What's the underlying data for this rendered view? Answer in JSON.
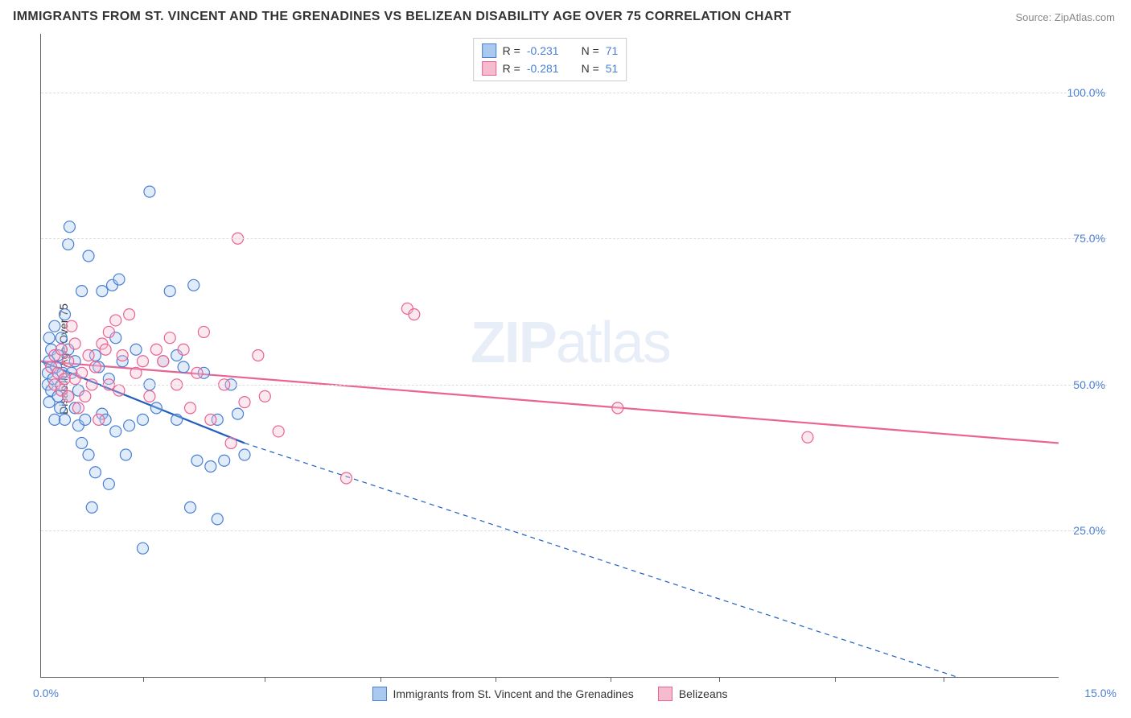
{
  "title": "IMMIGRANTS FROM ST. VINCENT AND THE GRENADINES VS BELIZEAN DISABILITY AGE OVER 75 CORRELATION CHART",
  "source": "Source: ZipAtlas.com",
  "watermark": {
    "zip": "ZIP",
    "atlas": "atlas"
  },
  "chart": {
    "type": "scatter",
    "ylabel": "Disability Age Over 75",
    "xlim": [
      0.0,
      15.0
    ],
    "ylim": [
      0.0,
      110.0
    ],
    "xlim_labels": {
      "left": "0.0%",
      "right": "15.0%"
    },
    "xtick_positions": [
      1.5,
      3.3,
      5.0,
      6.7,
      8.4,
      10.0,
      11.7,
      13.3
    ],
    "ytick_labels": [
      "25.0%",
      "50.0%",
      "75.0%",
      "100.0%"
    ],
    "ytick_positions": [
      25.0,
      50.0,
      75.0,
      100.0
    ],
    "grid_color": "#dddddd",
    "axis_color": "#666666",
    "tick_label_color": "#4a7fd4",
    "background_color": "#ffffff",
    "marker_radius": 7,
    "marker_stroke_width": 1.2,
    "marker_fill_opacity": 0.35,
    "series": [
      {
        "name": "Immigrants from St. Vincent and the Grenadines",
        "color_fill": "#a9c9f0",
        "color_stroke": "#4a7fd4",
        "R": "-0.231",
        "N": "71",
        "trend": {
          "x1": 0.0,
          "y1": 54.0,
          "x2": 3.0,
          "y2": 40.0,
          "solid_end_x": 3.0,
          "dash_to_x": 13.5,
          "dash_to_y": 0.0,
          "color": "#1f5fbf",
          "width": 2.2
        },
        "points": [
          [
            0.1,
            50
          ],
          [
            0.1,
            52
          ],
          [
            0.12,
            54
          ],
          [
            0.12,
            47
          ],
          [
            0.15,
            56
          ],
          [
            0.15,
            49
          ],
          [
            0.18,
            51
          ],
          [
            0.2,
            60
          ],
          [
            0.2,
            44
          ],
          [
            0.22,
            53
          ],
          [
            0.25,
            48
          ],
          [
            0.25,
            55
          ],
          [
            0.28,
            46
          ],
          [
            0.3,
            58
          ],
          [
            0.3,
            50
          ],
          [
            0.32,
            52
          ],
          [
            0.35,
            62
          ],
          [
            0.35,
            44
          ],
          [
            0.4,
            56
          ],
          [
            0.4,
            48
          ],
          [
            0.42,
            77
          ],
          [
            0.45,
            52
          ],
          [
            0.5,
            46
          ],
          [
            0.5,
            54
          ],
          [
            0.55,
            43
          ],
          [
            0.55,
            49
          ],
          [
            0.6,
            66
          ],
          [
            0.6,
            40
          ],
          [
            0.65,
            44
          ],
          [
            0.7,
            72
          ],
          [
            0.7,
            38
          ],
          [
            0.75,
            29
          ],
          [
            0.8,
            35
          ],
          [
            0.8,
            55
          ],
          [
            0.85,
            53
          ],
          [
            0.9,
            66
          ],
          [
            0.9,
            45
          ],
          [
            0.95,
            44
          ],
          [
            1.0,
            51
          ],
          [
            1.0,
            33
          ],
          [
            1.05,
            67
          ],
          [
            1.1,
            58
          ],
          [
            1.1,
            42
          ],
          [
            1.15,
            68
          ],
          [
            1.2,
            54
          ],
          [
            1.25,
            38
          ],
          [
            1.3,
            43
          ],
          [
            1.4,
            56
          ],
          [
            1.5,
            44
          ],
          [
            1.5,
            22
          ],
          [
            1.6,
            83
          ],
          [
            1.6,
            50
          ],
          [
            1.7,
            46
          ],
          [
            1.8,
            54
          ],
          [
            1.9,
            66
          ],
          [
            2.0,
            44
          ],
          [
            2.0,
            55
          ],
          [
            2.1,
            53
          ],
          [
            2.2,
            29
          ],
          [
            2.25,
            67
          ],
          [
            2.3,
            37
          ],
          [
            2.4,
            52
          ],
          [
            2.5,
            36
          ],
          [
            2.6,
            44
          ],
          [
            2.6,
            27
          ],
          [
            2.7,
            37
          ],
          [
            2.8,
            50
          ],
          [
            2.9,
            45
          ],
          [
            3.0,
            38
          ],
          [
            0.4,
            74
          ],
          [
            0.12,
            58
          ]
        ]
      },
      {
        "name": "Belizeans",
        "color_fill": "#f5bcd0",
        "color_stroke": "#e96394",
        "R": "-0.281",
        "N": "51",
        "trend": {
          "x1": 0.0,
          "y1": 54.0,
          "x2": 15.0,
          "y2": 40.0,
          "solid_end_x": 15.0,
          "color": "#e96394",
          "width": 2.2
        },
        "points": [
          [
            0.15,
            53
          ],
          [
            0.2,
            50
          ],
          [
            0.2,
            55
          ],
          [
            0.25,
            52
          ],
          [
            0.3,
            49
          ],
          [
            0.3,
            56
          ],
          [
            0.35,
            51
          ],
          [
            0.4,
            54
          ],
          [
            0.4,
            48
          ],
          [
            0.45,
            60
          ],
          [
            0.5,
            51
          ],
          [
            0.5,
            57
          ],
          [
            0.55,
            46
          ],
          [
            0.6,
            52
          ],
          [
            0.65,
            48
          ],
          [
            0.7,
            55
          ],
          [
            0.75,
            50
          ],
          [
            0.8,
            53
          ],
          [
            0.85,
            44
          ],
          [
            0.9,
            57
          ],
          [
            0.95,
            56
          ],
          [
            1.0,
            59
          ],
          [
            1.0,
            50
          ],
          [
            1.1,
            61
          ],
          [
            1.15,
            49
          ],
          [
            1.2,
            55
          ],
          [
            1.3,
            62
          ],
          [
            1.4,
            52
          ],
          [
            1.5,
            54
          ],
          [
            1.6,
            48
          ],
          [
            1.7,
            56
          ],
          [
            1.8,
            54
          ],
          [
            1.9,
            58
          ],
          [
            2.0,
            50
          ],
          [
            2.1,
            56
          ],
          [
            2.2,
            46
          ],
          [
            2.3,
            52
          ],
          [
            2.5,
            44
          ],
          [
            2.7,
            50
          ],
          [
            2.8,
            40
          ],
          [
            2.9,
            75
          ],
          [
            3.0,
            47
          ],
          [
            3.2,
            55
          ],
          [
            3.3,
            48
          ],
          [
            3.5,
            42
          ],
          [
            4.5,
            34
          ],
          [
            5.4,
            63
          ],
          [
            5.5,
            62
          ],
          [
            8.5,
            46
          ],
          [
            11.3,
            41
          ],
          [
            2.4,
            59
          ]
        ]
      }
    ],
    "legend_top": {
      "R_label": "R =",
      "N_label": "N ="
    },
    "legend_bottom": {
      "items": [
        "Immigrants from St. Vincent and the Grenadines",
        "Belizeans"
      ]
    }
  }
}
